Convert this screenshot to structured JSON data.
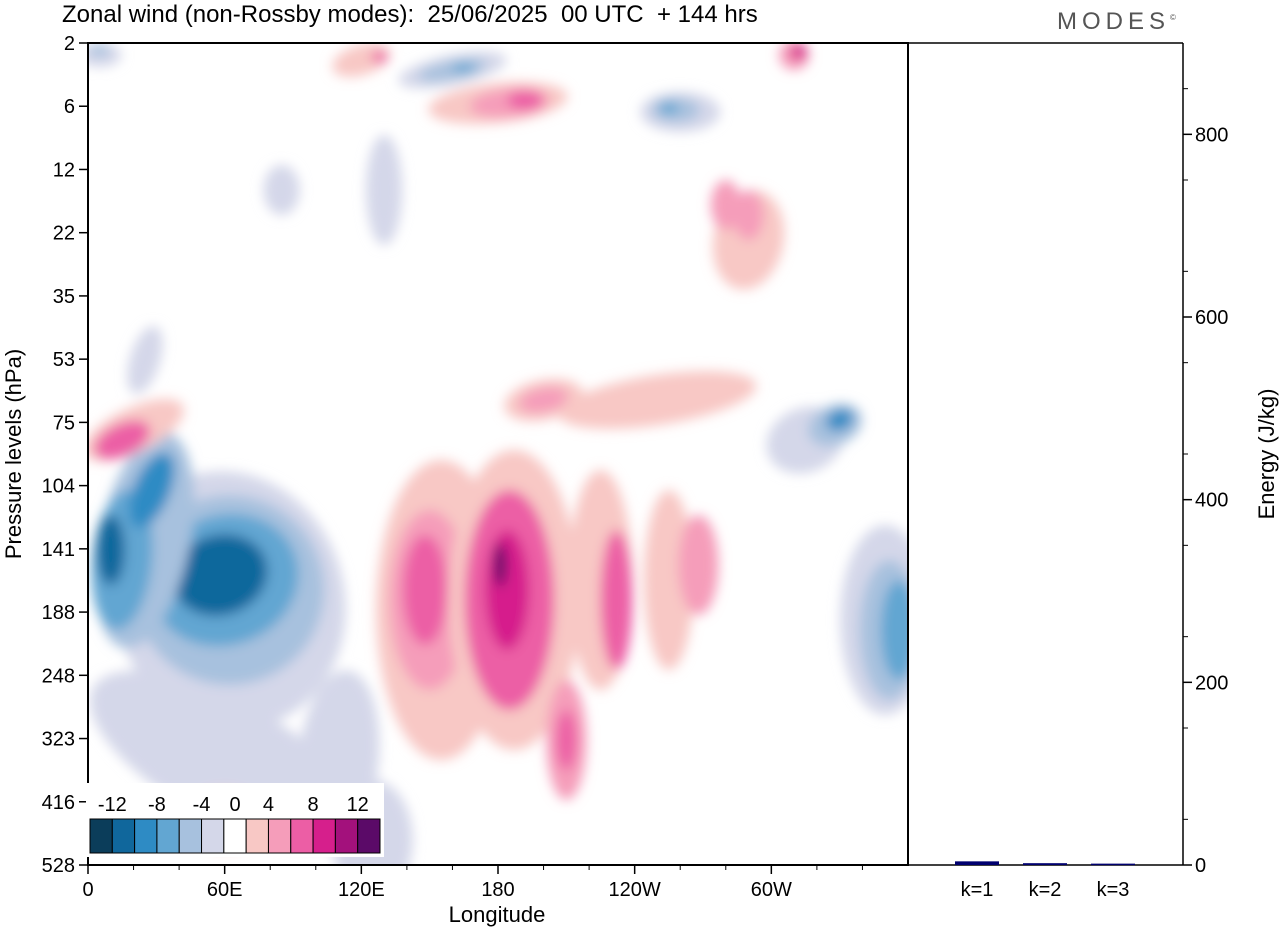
{
  "header": {
    "title": "Zonal wind (non-Rossby modes):  25/06/2025  00 UTC  + 144 hrs",
    "brand": "MODES",
    "brand_mark": "©"
  },
  "chart_data": [
    {
      "type": "heatmap",
      "title": "Zonal wind (non-Rossby modes):  25/06/2025  00 UTC  + 144 hrs",
      "xlabel": "Longitude",
      "ylabel": "Pressure levels (hPa)",
      "x_ticks": [
        "0",
        "60E",
        "120E",
        "180",
        "120W",
        "60W"
      ],
      "x_tick_degrees": [
        0,
        60,
        120,
        180,
        240,
        300
      ],
      "xlim": [
        0,
        360
      ],
      "y_ticks": [
        "2",
        "6",
        "12",
        "22",
        "35",
        "53",
        "75",
        "104",
        "141",
        "188",
        "248",
        "323",
        "416",
        "528"
      ],
      "y_scale": "model levels, pressure increasing downward",
      "colorbar": {
        "labels": [
          "-12",
          "-8",
          "-4",
          "0",
          "4",
          "8",
          "12"
        ],
        "levels": [
          -14,
          -12,
          -10,
          -8,
          -6,
          -4,
          -2,
          2,
          4,
          6,
          8,
          10,
          12,
          14
        ],
        "colors": [
          "#0b3d5a",
          "#10679c",
          "#2e8bc4",
          "#62a6d2",
          "#a7c1de",
          "#d4d7e9",
          "#ffffff",
          "#f8c8c5",
          "#f59dba",
          "#ec5ea5",
          "#d61f8c",
          "#a3117c",
          "#5b0a68"
        ]
      },
      "features": [
        {
          "name": "upper-tropo easterly max west Indian Ocean",
          "lon_center": 62,
          "level_center": "188",
          "value": -12
        },
        {
          "name": "easterly max near 0-20E",
          "lon_center": 10,
          "level_center": "141",
          "value": -10
        },
        {
          "name": "westerly max near dateline",
          "lon_center": 185,
          "level_center": "188",
          "value": 10
        },
        {
          "name": "westerly max 160E",
          "lon_center": 150,
          "level_center": "188",
          "value": 8
        },
        {
          "name": "westerly max near 130W",
          "lon_center": 232,
          "level_center": "188",
          "value": 8
        },
        {
          "name": "easterly max eastern Pacific/Atlantic",
          "lon_center": 350,
          "level_center": "188",
          "value": -6
        },
        {
          "name": "westerly max 75 hPa 0-30E",
          "lon_center": 15,
          "level_center": "75",
          "value": 8
        },
        {
          "name": "easterly max 75 hPa 40W",
          "lon_center": 328,
          "level_center": "75",
          "value": -8
        },
        {
          "name": "easterly max 6 hPa 120W",
          "lon_center": 260,
          "level_center": "6",
          "value": -8
        },
        {
          "name": "westerly max 6 hPa 180",
          "lon_center": 185,
          "level_center": "6",
          "value": 8
        }
      ]
    },
    {
      "type": "bar",
      "ylabel": "Energy (J/kg)",
      "ylim": [
        0,
        900
      ],
      "y_ticks": [
        "0",
        "200",
        "400",
        "600",
        "800"
      ],
      "categories": [
        "k=1",
        "k=2",
        "k=3"
      ],
      "values": [
        4,
        2,
        1.5
      ],
      "bar_color": "#00006e"
    }
  ]
}
